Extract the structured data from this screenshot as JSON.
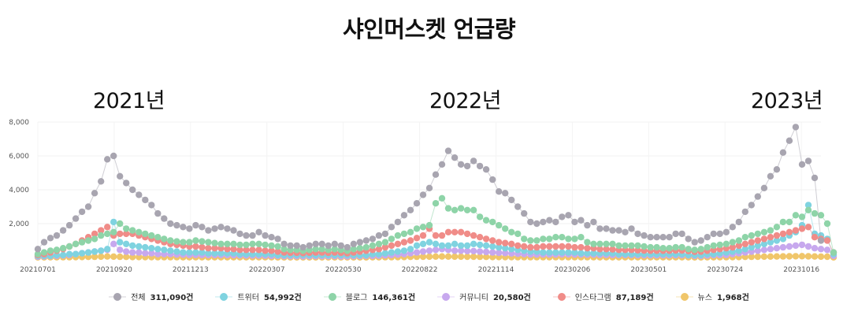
{
  "title": "샤인머스켓 언급량",
  "year_labels": [
    "2021년",
    "2022년",
    "2023년"
  ],
  "legend": [
    {
      "name": "전체",
      "value": "311,090건",
      "color": "#a8a5b0"
    },
    {
      "name": "트위터",
      "value": "54,992건",
      "color": "#7fd3e0"
    },
    {
      "name": "블로그",
      "value": "146,361건",
      "color": "#8ed4a8"
    },
    {
      "name": "커뮤니티",
      "value": "20,580건",
      "color": "#c7a8ee"
    },
    {
      "name": "인스타그램",
      "value": "87,189건",
      "color": "#f08c88"
    },
    {
      "name": "뉴스",
      "value": "1,968건",
      "color": "#f0c66a"
    }
  ],
  "chart_data": {
    "type": "line",
    "x_tick_labels": [
      "20210701",
      "20210920",
      "20211213",
      "20220307",
      "20220530",
      "20220822",
      "20221114",
      "20230206",
      "20230501",
      "20230724",
      "20231016"
    ],
    "y_tick_labels": [
      "2,000",
      "4,000",
      "6,000",
      "8,000"
    ],
    "ylim": [
      0,
      8000
    ],
    "grid": true,
    "legend_position": "bottom",
    "series": [
      {
        "name": "전체",
        "color": "#a8a5b0",
        "values": [
          500,
          900,
          1150,
          1300,
          1600,
          1900,
          2300,
          2700,
          3000,
          3800,
          4500,
          5800,
          6000,
          4800,
          4400,
          4000,
          3700,
          3400,
          3100,
          2600,
          2300,
          2000,
          1900,
          1800,
          1700,
          1900,
          1800,
          1600,
          1700,
          1800,
          1700,
          1600,
          1400,
          1300,
          1300,
          1500,
          1300,
          1200,
          1100,
          800,
          700,
          700,
          600,
          700,
          800,
          800,
          700,
          800,
          700,
          600,
          800,
          900,
          1000,
          1100,
          1300,
          1400,
          1800,
          2100,
          2500,
          2800,
          3200,
          3700,
          4100,
          4900,
          5500,
          6300,
          5900,
          5500,
          5400,
          5700,
          5400,
          5200,
          4600,
          3900,
          3800,
          3400,
          3000,
          2600,
          2100,
          2000,
          2100,
          2200,
          2100,
          2400,
          2500,
          2100,
          2200,
          1900,
          2100,
          1700,
          1700,
          1600,
          1600,
          1500,
          1700,
          1400,
          1300,
          1200,
          1200,
          1200,
          1200,
          1400,
          1400,
          1100,
          900,
          1000,
          1200,
          1400,
          1400,
          1500,
          1800,
          2100,
          2700,
          3100,
          3600,
          4100,
          4800,
          5200,
          6200,
          6900,
          7700,
          5500,
          5700,
          4700,
          1000
        ]
      },
      {
        "name": "트위터",
        "color": "#7fd3e0",
        "values": [
          100,
          100,
          100,
          150,
          150,
          200,
          200,
          250,
          300,
          350,
          400,
          500,
          2100,
          900,
          800,
          700,
          650,
          600,
          550,
          500,
          450,
          400,
          350,
          300,
          300,
          300,
          300,
          250,
          250,
          250,
          250,
          250,
          200,
          200,
          200,
          200,
          200,
          200,
          150,
          150,
          150,
          150,
          150,
          150,
          150,
          150,
          150,
          150,
          150,
          150,
          150,
          150,
          150,
          200,
          200,
          250,
          300,
          350,
          400,
          500,
          700,
          800,
          900,
          800,
          700,
          700,
          800,
          700,
          700,
          800,
          750,
          700,
          650,
          600,
          550,
          500,
          450,
          400,
          350,
          350,
          300,
          300,
          300,
          300,
          300,
          300,
          250,
          250,
          250,
          250,
          250,
          250,
          200,
          200,
          200,
          200,
          200,
          200,
          200,
          200,
          200,
          200,
          200,
          150,
          150,
          150,
          200,
          200,
          250,
          300,
          350,
          400,
          500,
          600,
          700,
          800,
          900,
          1000,
          1100,
          1300,
          1500,
          1900,
          3100,
          1400,
          1300,
          1100,
          200
        ]
      },
      {
        "name": "블로그",
        "color": "#8ed4a8",
        "values": [
          200,
          300,
          400,
          450,
          550,
          650,
          800,
          900,
          1000,
          1100,
          1300,
          1400,
          1500,
          2000,
          1700,
          1600,
          1500,
          1400,
          1300,
          1200,
          1100,
          1000,
          950,
          900,
          900,
          1000,
          950,
          900,
          850,
          800,
          800,
          800,
          750,
          750,
          800,
          800,
          750,
          700,
          650,
          500,
          450,
          450,
          400,
          450,
          500,
          500,
          450,
          500,
          450,
          400,
          500,
          550,
          600,
          700,
          800,
          900,
          1100,
          1300,
          1400,
          1500,
          1700,
          1800,
          1900,
          3200,
          3500,
          2900,
          2800,
          2900,
          2800,
          2800,
          2400,
          2200,
          2100,
          1900,
          1700,
          1500,
          1400,
          1100,
          1000,
          1000,
          1100,
          1100,
          1200,
          1200,
          1100,
          1100,
          1200,
          900,
          800,
          800,
          800,
          800,
          700,
          700,
          700,
          700,
          650,
          600,
          600,
          550,
          550,
          600,
          600,
          500,
          450,
          500,
          600,
          700,
          750,
          800,
          900,
          1000,
          1200,
          1300,
          1400,
          1500,
          1600,
          1800,
          2100,
          2100,
          2500,
          2400,
          2800,
          2600,
          2500,
          2000,
          300
        ]
      },
      {
        "name": "커뮤니티",
        "color": "#c7a8ee",
        "values": [
          50,
          60,
          80,
          100,
          120,
          150,
          200,
          250,
          300,
          350,
          400,
          450,
          800,
          450,
          350,
          300,
          300,
          250,
          250,
          200,
          200,
          200,
          180,
          170,
          160,
          160,
          150,
          150,
          150,
          150,
          150,
          140,
          130,
          120,
          120,
          120,
          110,
          100,
          100,
          80,
          80,
          80,
          70,
          80,
          80,
          80,
          80,
          80,
          70,
          70,
          80,
          90,
          100,
          100,
          110,
          130,
          150,
          170,
          200,
          250,
          300,
          350,
          400,
          450,
          500,
          450,
          400,
          400,
          380,
          380,
          350,
          330,
          300,
          280,
          260,
          240,
          220,
          200,
          180,
          180,
          180,
          180,
          180,
          190,
          190,
          180,
          180,
          170,
          170,
          160,
          160,
          150,
          150,
          150,
          150,
          140,
          130,
          130,
          130,
          130,
          130,
          140,
          140,
          120,
          100,
          100,
          120,
          140,
          150,
          160,
          200,
          250,
          300,
          350,
          400,
          450,
          500,
          550,
          600,
          650,
          700,
          750,
          650,
          550,
          500,
          450,
          100
        ]
      },
      {
        "name": "인스타그램",
        "color": "#f08c88",
        "values": [
          150,
          200,
          300,
          400,
          500,
          650,
          800,
          1000,
          1200,
          1400,
          1600,
          1800,
          1300,
          1400,
          1400,
          1400,
          1300,
          1200,
          1100,
          1000,
          900,
          800,
          750,
          700,
          650,
          650,
          600,
          550,
          550,
          550,
          500,
          500,
          450,
          450,
          450,
          450,
          400,
          400,
          350,
          300,
          280,
          280,
          260,
          280,
          300,
          300,
          280,
          300,
          280,
          250,
          300,
          350,
          400,
          450,
          500,
          600,
          700,
          800,
          900,
          1000,
          1150,
          1300,
          1700,
          1300,
          1300,
          1500,
          1500,
          1500,
          1400,
          1300,
          1200,
          1100,
          1000,
          900,
          850,
          800,
          700,
          650,
          600,
          600,
          650,
          650,
          650,
          650,
          650,
          600,
          600,
          550,
          550,
          500,
          500,
          480,
          450,
          450,
          450,
          430,
          410,
          400,
          400,
          400,
          400,
          420,
          420,
          380,
          340,
          350,
          400,
          450,
          500,
          550,
          600,
          700,
          800,
          900,
          1000,
          1100,
          1200,
          1300,
          1400,
          1500,
          1600,
          1700,
          1800,
          1200,
          1100,
          1000,
          300
        ]
      },
      {
        "name": "뉴스",
        "color": "#f0c66a",
        "values": [
          10,
          10,
          15,
          15,
          20,
          20,
          25,
          30,
          35,
          40,
          50,
          60,
          50,
          40,
          35,
          30,
          30,
          25,
          25,
          20,
          20,
          20,
          20,
          15,
          15,
          15,
          15,
          15,
          15,
          15,
          15,
          15,
          15,
          15,
          15,
          15,
          15,
          15,
          10,
          10,
          10,
          10,
          10,
          10,
          10,
          10,
          10,
          10,
          10,
          10,
          10,
          10,
          10,
          15,
          15,
          20,
          20,
          25,
          30,
          35,
          40,
          45,
          50,
          55,
          60,
          55,
          50,
          50,
          45,
          45,
          40,
          35,
          30,
          30,
          25,
          25,
          20,
          20,
          20,
          20,
          20,
          20,
          20,
          20,
          20,
          20,
          20,
          20,
          20,
          15,
          15,
          15,
          15,
          15,
          15,
          15,
          15,
          15,
          15,
          15,
          15,
          15,
          15,
          15,
          10,
          10,
          15,
          15,
          20,
          20,
          25,
          30,
          35,
          40,
          45,
          50,
          55,
          60,
          65,
          70,
          75,
          80,
          70,
          60,
          50,
          45,
          10
        ]
      }
    ]
  }
}
